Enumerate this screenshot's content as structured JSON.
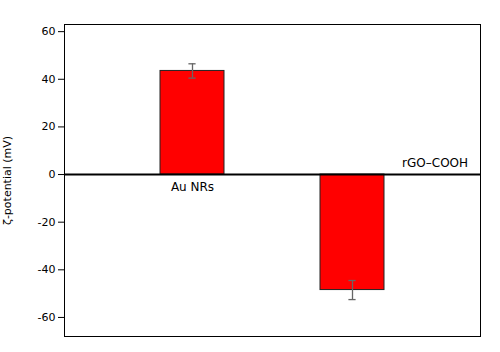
{
  "chart_data": {
    "type": "bar",
    "categories": [
      "Au NRs",
      "rGO–COOH"
    ],
    "values": [
      43.5,
      -48.5
    ],
    "errors": [
      3.0,
      4.0
    ],
    "color": "#FF0000",
    "ylabel": "ζ-potential (mV)",
    "ylim": [
      -68,
      63
    ],
    "yticks": [
      -60,
      -40,
      -20,
      0,
      20,
      40,
      60
    ],
    "grid": false,
    "tick_labels": "y"
  }
}
